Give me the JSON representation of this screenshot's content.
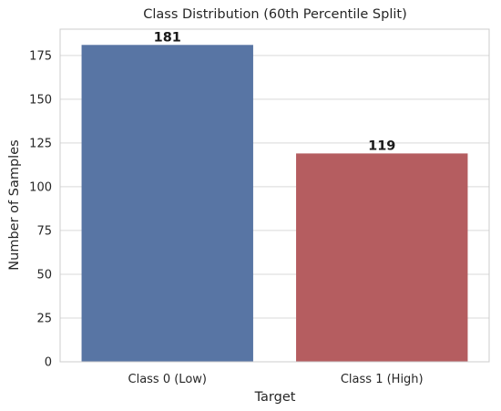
{
  "chart_data": {
    "type": "bar",
    "title": "Class Distribution (60th Percentile Split)",
    "xlabel": "Target",
    "ylabel": "Number of Samples",
    "categories": [
      "Class 0 (Low)",
      "Class 1 (High)"
    ],
    "values": [
      181,
      119
    ],
    "data_labels": [
      "181",
      "119"
    ],
    "colors": [
      "#5875a4",
      "#b55d60"
    ],
    "ylim": [
      0,
      190
    ],
    "yticks": [
      0,
      25,
      50,
      75,
      100,
      125,
      150,
      175
    ],
    "grid": true,
    "grid_axis": "y",
    "legend": false
  },
  "style": {
    "background": "#ffffff",
    "grid_color": "#d9d9d9",
    "spine_color": "#cccccc",
    "text_color": "#262626"
  }
}
